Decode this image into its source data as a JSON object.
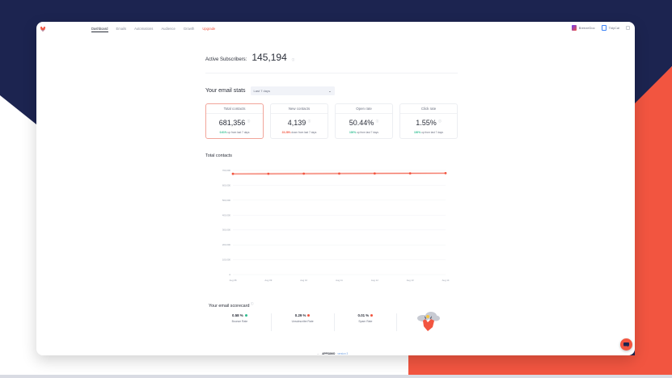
{
  "nav": {
    "items": [
      {
        "label": "Dashboard",
        "active": true
      },
      {
        "label": "Emails"
      },
      {
        "label": "Automations"
      },
      {
        "label": "Audience"
      },
      {
        "label": "Growth"
      },
      {
        "label": "Upgrade",
        "highlight": true
      }
    ],
    "apps": [
      {
        "label": "BreezeDoc",
        "icon": "breezedoc-icon",
        "color": "#6b3df5"
      },
      {
        "label": "TidyCal",
        "icon": "tidycal-icon",
        "color": "#3b82f6"
      }
    ]
  },
  "active_subscribers": {
    "label": "Active Subscribers:",
    "value": "145,194"
  },
  "email_stats": {
    "title": "Your email stats",
    "period": "Last 7 days",
    "cards": [
      {
        "title": "Total contacts",
        "value": "681,356",
        "delta": "0.61%",
        "direction": "up",
        "suffix": "up from last 7 days",
        "selected": true
      },
      {
        "title": "New contacts",
        "value": "4,139",
        "delta": "23.28%",
        "direction": "down",
        "suffix": "down from last 7 days"
      },
      {
        "title": "Open rate",
        "value": "50.44%",
        "delta": "100%",
        "direction": "up",
        "suffix": "up from last 7 days"
      },
      {
        "title": "Click rate",
        "value": "1.55%",
        "delta": "100%",
        "direction": "up",
        "suffix": "up from last 7 days"
      }
    ]
  },
  "chart_title": "Total contacts",
  "chart_data": {
    "type": "line",
    "title": "Total contacts",
    "categories": [
      "Aug 08",
      "Aug 09",
      "Aug 10",
      "Aug 11",
      "Aug 12",
      "Aug 13",
      "Aug 14"
    ],
    "series": [
      {
        "name": "Total contacts",
        "values": [
          677200,
          677800,
          678400,
          679000,
          679700,
          680500,
          681356
        ],
        "color": "#f25540"
      }
    ],
    "yticks": [
      "0",
      "100,000",
      "200,000",
      "300,000",
      "400,000",
      "500,000",
      "600,000",
      "700,000"
    ],
    "ylim": [
      0,
      700000
    ],
    "grid": true,
    "xlabel": "",
    "ylabel": ""
  },
  "scorecard": {
    "title": "Your email scorecard",
    "items": [
      {
        "value": "0.58 %",
        "label": "Bounce Rate",
        "status_color": "#2dbd8f"
      },
      {
        "value": "0.29 %",
        "label": "Unsubscribe Rate",
        "status_color": "#f25540"
      },
      {
        "value": "0.01 %",
        "label": "Spam Rate",
        "status_color": "#f25540"
      }
    ]
  },
  "footer": {
    "arrow": "←",
    "brand": "APPSUMO",
    "version": "version 3"
  },
  "colors": {
    "accent": "#f25540",
    "navy": "#1c2450",
    "up": "#2dbd8f",
    "down": "#f25540"
  }
}
